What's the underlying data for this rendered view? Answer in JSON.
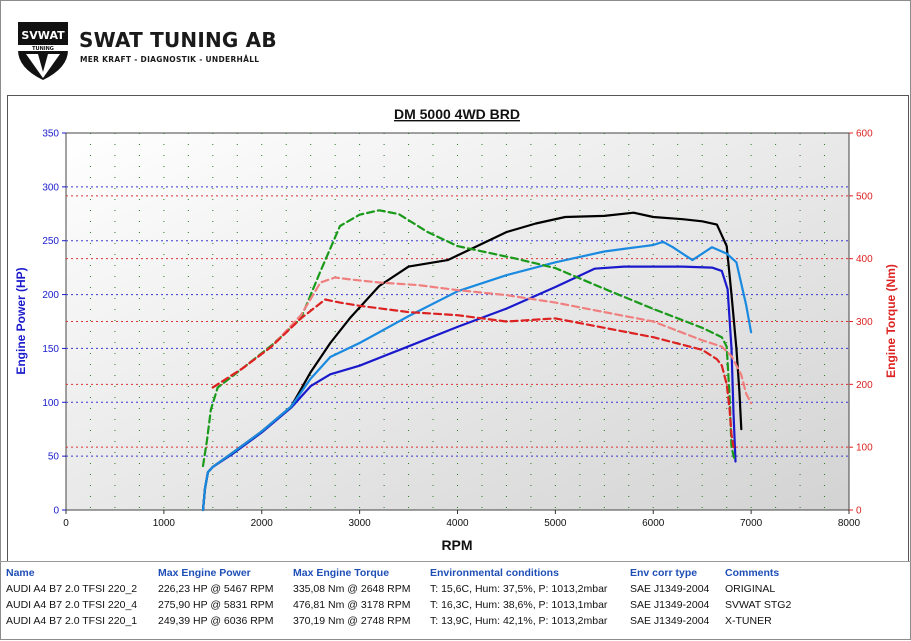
{
  "brand": {
    "name": "SWAT TUNING AB",
    "tagline": "MER KRAFT - DIAGNOSTIK - UNDERHÅLL",
    "logo_top": "SVWAT",
    "logo_sub": "TUNING"
  },
  "colors": {
    "power_axis": "#1a1acc",
    "torque_axis": "#dd2222",
    "results_header": "#1f4fb6"
  },
  "chart_data": {
    "type": "line",
    "title": "DM 5000 4WD BRD",
    "xlabel": "RPM",
    "ylabel_left": "Engine Power (HP)",
    "ylabel_right": "Engine Torque (Nm)",
    "xlim": [
      0,
      8000
    ],
    "ylim_left": [
      0,
      350
    ],
    "ylim_right": [
      0,
      600
    ],
    "x_ticks": [
      "0",
      "1000",
      "2000",
      "3000",
      "4000",
      "5000",
      "6000",
      "7000",
      "8000"
    ],
    "y_left_ticks": [
      "0",
      "50",
      "100",
      "150",
      "200",
      "250",
      "300",
      "350"
    ],
    "y_right_ticks": [
      "0",
      "100",
      "200",
      "300",
      "400",
      "500",
      "600"
    ],
    "grid": true,
    "series": [
      {
        "name": "AUDI A4 B7 2.0 TFSI 220_2",
        "metric": "power",
        "axis": "left",
        "color": "#1a1acc",
        "dash": "solid",
        "x": [
          1400,
          1420,
          1450,
          1500,
          1700,
          2000,
          2300,
          2500,
          2700,
          3000,
          3500,
          4000,
          4500,
          5000,
          5400,
          5700,
          6000,
          6300,
          6600,
          6700,
          6760,
          6800,
          6820,
          6840
        ],
        "y": [
          0,
          20,
          35,
          40,
          52,
          72,
          95,
          115,
          126,
          134,
          152,
          170,
          187,
          207,
          224,
          226,
          226,
          226,
          225,
          222,
          205,
          150,
          90,
          45
        ]
      },
      {
        "name": "AUDI A4 B7 2.0 TFSI 220_4",
        "metric": "power",
        "axis": "left",
        "color": "#000000",
        "dash": "solid",
        "x": [
          1400,
          1420,
          1450,
          1500,
          1700,
          2000,
          2300,
          2500,
          2700,
          2900,
          3200,
          3500,
          3900,
          4200,
          4500,
          4800,
          5100,
          5500,
          5800,
          6000,
          6300,
          6500,
          6650,
          6750,
          6800,
          6850,
          6880,
          6900
        ],
        "y": [
          0,
          20,
          35,
          40,
          53,
          73,
          96,
          128,
          155,
          178,
          208,
          226,
          232,
          245,
          258,
          266,
          272,
          273,
          276,
          272,
          270,
          268,
          265,
          245,
          200,
          150,
          110,
          75
        ]
      },
      {
        "name": "AUDI A4 B7 2.0 TFSI 220_1",
        "metric": "power",
        "axis": "left",
        "color": "#1a8ae0",
        "dash": "solid",
        "x": [
          1400,
          1420,
          1450,
          1500,
          1700,
          2000,
          2300,
          2500,
          2700,
          3000,
          3500,
          4000,
          4500,
          5000,
          5500,
          6000,
          6100,
          6200,
          6400,
          6600,
          6750,
          6850,
          6950,
          7000
        ],
        "y": [
          0,
          20,
          35,
          40,
          53,
          73,
          96,
          122,
          142,
          155,
          180,
          203,
          218,
          230,
          240,
          246,
          249,
          244,
          232,
          244,
          238,
          230,
          190,
          165
        ]
      },
      {
        "name": "AUDI A4 B7 2.0 TFSI 220_4",
        "metric": "torque",
        "axis": "right",
        "color": "#1a9a1a",
        "dash": "dashed",
        "x": [
          1400,
          1440,
          1480,
          1550,
          1800,
          2100,
          2400,
          2600,
          2800,
          3000,
          3200,
          3400,
          3700,
          4000,
          4300,
          4600,
          5000,
          5500,
          6000,
          6500,
          6700,
          6750,
          6780,
          6800,
          6830
        ],
        "y": [
          70,
          110,
          160,
          195,
          225,
          262,
          305,
          380,
          452,
          470,
          477,
          471,
          442,
          420,
          410,
          400,
          385,
          352,
          320,
          290,
          275,
          260,
          180,
          100,
          80
        ]
      },
      {
        "name": "AUDI A4 B7 2.0 TFSI 220_1",
        "metric": "torque",
        "axis": "right",
        "color": "#f08080",
        "dash": "dashed",
        "x": [
          1500,
          1550,
          1800,
          2100,
          2400,
          2600,
          2748,
          2900,
          3200,
          3600,
          4000,
          4500,
          5000,
          5500,
          6000,
          6500,
          6700,
          6800,
          6900,
          6950,
          7000
        ],
        "y": [
          195,
          200,
          225,
          260,
          310,
          362,
          370,
          367,
          362,
          358,
          350,
          342,
          330,
          315,
          300,
          270,
          260,
          245,
          215,
          185,
          170
        ]
      },
      {
        "name": "AUDI A4 B7 2.0 TFSI 220_2",
        "metric": "torque",
        "axis": "right",
        "color": "#dd2222",
        "dash": "dashed",
        "x": [
          1500,
          1550,
          1800,
          2100,
          2400,
          2648,
          2800,
          3000,
          3500,
          4000,
          4500,
          5000,
          5500,
          6000,
          6500,
          6650,
          6700,
          6750,
          6780,
          6800,
          6820
        ],
        "y": [
          195,
          200,
          225,
          260,
          305,
          335,
          330,
          325,
          315,
          310,
          300,
          305,
          290,
          275,
          255,
          240,
          230,
          200,
          160,
          120,
          100
        ]
      }
    ]
  },
  "results": {
    "headers": [
      "Name",
      "Max Engine Power",
      "Max Engine Torque",
      "Environmental conditions",
      "Env corr type",
      "Comments"
    ],
    "rows": [
      [
        "AUDI A4 B7 2.0 TFSI 220_2",
        "226,23 HP @ 5467 RPM",
        "335,08 Nm @ 2648 RPM",
        "T: 15,6C, Hum: 37,5%, P: 1013,2mbar",
        "SAE J1349-2004",
        "ORIGINAL"
      ],
      [
        "AUDI A4 B7 2.0 TFSI 220_4",
        "275,90 HP @ 5831 RPM",
        "476,81 Nm @ 3178 RPM",
        "T: 16,3C, Hum: 38,6%, P: 1013,1mbar",
        "SAE J1349-2004",
        "SVWAT STG2"
      ],
      [
        "AUDI A4 B7 2.0 TFSI 220_1",
        "249,39 HP @ 6036 RPM",
        "370,19 Nm @ 2748 RPM",
        "T: 13,9C, Hum: 42,1%, P: 1013,2mbar",
        "SAE J1349-2004",
        "X-TUNER"
      ]
    ]
  }
}
